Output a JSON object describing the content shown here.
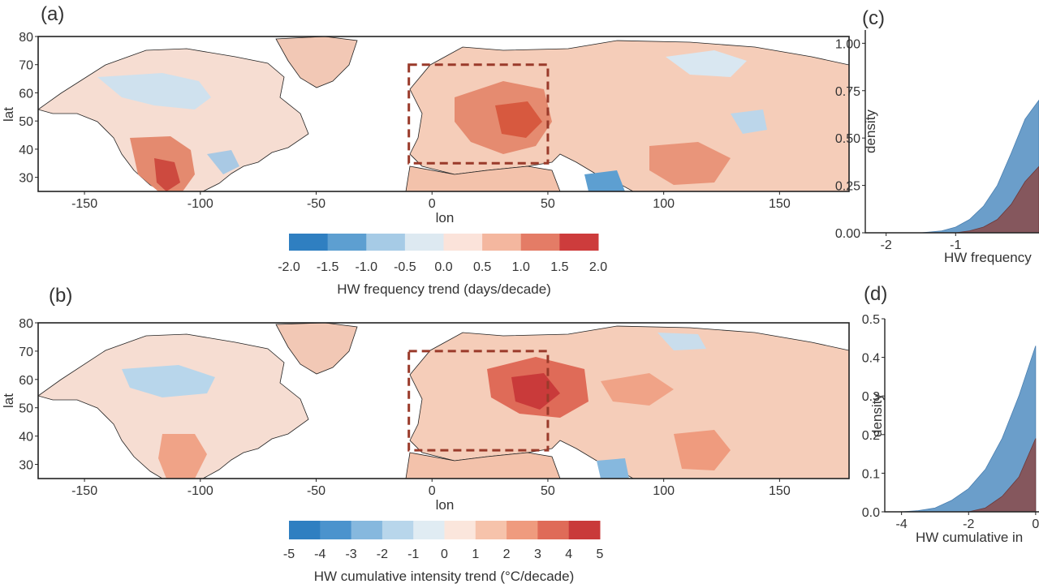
{
  "panels": {
    "a": "(a)",
    "b": "(b)",
    "c": "(c)",
    "d": "(d)"
  },
  "colors": {
    "hw_freq": [
      "#2f7fc1",
      "#5d9fd1",
      "#a6cbe6",
      "#dde9f1",
      "#fbe3da",
      "#f4b79f",
      "#e47c66",
      "#cd3c3c"
    ],
    "hw_int": [
      "#2f7fc1",
      "#4b93cd",
      "#86b8de",
      "#b8d6eb",
      "#e0ecf3",
      "#fbe6dc",
      "#f6c3ab",
      "#ef9b7e",
      "#df6b58",
      "#c93a3a"
    ],
    "density_blue": "#5b93c4",
    "density_red": "#8a4a4a",
    "box": "#9a3a2a"
  },
  "chart_data": [
    {
      "type": "heatmap",
      "panel": "(a)",
      "xlabel": "lon",
      "ylabel": "lat",
      "xlim": [
        -170,
        180
      ],
      "ylim": [
        25,
        80
      ],
      "xticks": [
        -150,
        -100,
        -50,
        0,
        50,
        100,
        150
      ],
      "yticks": [
        30,
        40,
        50,
        60,
        70,
        80
      ],
      "highlight_box": {
        "lon": [
          -10,
          50
        ],
        "lat": [
          35,
          70
        ]
      },
      "colorbar": {
        "label": "HW frequency trend (days/decade)",
        "ticks": [
          "-2.0",
          "-1.5",
          "-1.0",
          "-0.5",
          "0.0",
          "0.5",
          "1.0",
          "1.5",
          "2.0"
        ],
        "range": [
          -2,
          2
        ]
      }
    },
    {
      "type": "heatmap",
      "panel": "(b)",
      "xlabel": "lon",
      "ylabel": "lat",
      "xlim": [
        -170,
        180
      ],
      "ylim": [
        25,
        80
      ],
      "xticks": [
        -150,
        -100,
        -50,
        0,
        50,
        100,
        150
      ],
      "yticks": [
        30,
        40,
        50,
        60,
        70,
        80
      ],
      "highlight_box": {
        "lon": [
          -10,
          50
        ],
        "lat": [
          35,
          70
        ]
      },
      "colorbar": {
        "label": "HW cumulative intensity trend (°C/decade)",
        "ticks": [
          "-5",
          "-4",
          "-3",
          "-2",
          "-1",
          "0",
          "1",
          "2",
          "3",
          "4",
          "5"
        ],
        "range": [
          -5,
          5
        ]
      }
    },
    {
      "type": "area",
      "panel": "(c)",
      "xlabel": "HW frequency",
      "ylabel": "density",
      "xlim": [
        -2.3,
        0.2
      ],
      "ylim": [
        0,
        1.07
      ],
      "xticks": [
        "-2",
        "-1"
      ],
      "yticks": [
        "0.00",
        "0.25",
        "0.50",
        "0.75",
        "1.00"
      ],
      "series": [
        {
          "x": [
            -1.5,
            -1.2,
            -1.0,
            -0.8,
            -0.6,
            -0.4,
            -0.2,
            0.0,
            0.2
          ],
          "values": [
            0.0,
            0.01,
            0.03,
            0.07,
            0.14,
            0.25,
            0.42,
            0.6,
            0.7
          ]
        },
        {
          "x": [
            -1.0,
            -0.8,
            -0.6,
            -0.4,
            -0.2,
            0.0,
            0.2
          ],
          "values": [
            0.0,
            0.01,
            0.03,
            0.07,
            0.15,
            0.27,
            0.35
          ]
        }
      ]
    },
    {
      "type": "area",
      "panel": "(d)",
      "xlabel": "HW cumulative in",
      "ylabel": "density",
      "xlim": [
        -4.5,
        0.1
      ],
      "ylim": [
        0,
        0.5
      ],
      "xticks": [
        "-4",
        "-2",
        "0"
      ],
      "yticks": [
        "0.0",
        "0.1",
        "0.2",
        "0.3",
        "0.4",
        "0.5"
      ],
      "series": [
        {
          "x": [
            -4.0,
            -3.5,
            -3.0,
            -2.5,
            -2.0,
            -1.5,
            -1.0,
            -0.5,
            0.0
          ],
          "values": [
            0.0,
            0.003,
            0.01,
            0.03,
            0.06,
            0.11,
            0.19,
            0.3,
            0.43
          ]
        },
        {
          "x": [
            -2.0,
            -1.5,
            -1.0,
            -0.5,
            0.0
          ],
          "values": [
            0.0,
            0.01,
            0.04,
            0.09,
            0.19
          ]
        }
      ]
    }
  ]
}
